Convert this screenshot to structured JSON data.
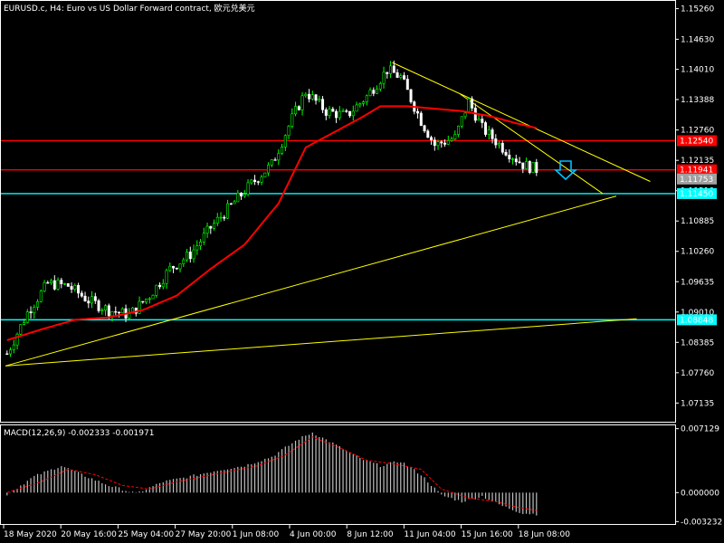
{
  "window": {
    "title": "EURUSD.c, H4:  Euro vs US Dollar Forward contract, 欧元兑美元"
  },
  "colors": {
    "background": "#000000",
    "bull_candle": "#00ff00",
    "bear_candle": "#ffffff",
    "ma": "#ff0000",
    "trendline": "#ffff00",
    "resistance": "#ff0000",
    "support": "#00ffff",
    "arrow": "#00bfff",
    "macd_hist": "#c0c0c0",
    "macd_signal": "#ff0000"
  },
  "chart_data": [
    {
      "type": "candlestick",
      "title": "EURUSD.c, H4:  Euro vs US Dollar Forward contract, 欧元兑美元",
      "ylim": [
        1.0675,
        1.1542
      ],
      "price_ticks": [
        "1.15260",
        "1.14630",
        "1.14010",
        "1.13388",
        "1.12760",
        "1.12135",
        "1.11510",
        "1.10885",
        "1.10260",
        "1.09635",
        "1.09010",
        "1.08385",
        "1.07760",
        "1.07135"
      ],
      "time_labels": [
        "18 May 2020",
        "20 May 16:00",
        "25 May 04:00",
        "27 May 20:00",
        "1 Jun 08:00",
        "4 Jun 00:00",
        "8 Jun 12:00",
        "11 Jun 04:00",
        "15 Jun 16:00",
        "18 Jun 08:00"
      ],
      "close_path": [
        [
          0,
          1.0815
        ],
        [
          6,
          1.09
        ],
        [
          12,
          1.096
        ],
        [
          18,
          1.0955
        ],
        [
          24,
          1.0925
        ],
        [
          30,
          1.0905
        ],
        [
          36,
          1.0895
        ],
        [
          42,
          1.0935
        ],
        [
          48,
          1.099
        ],
        [
          54,
          1.102
        ],
        [
          60,
          1.1075
        ],
        [
          66,
          1.112
        ],
        [
          72,
          1.1165
        ],
        [
          78,
          1.1205
        ],
        [
          84,
          1.13
        ],
        [
          88,
          1.1355
        ],
        [
          94,
          1.1315
        ],
        [
          100,
          1.1305
        ],
        [
          106,
          1.1345
        ],
        [
          112,
          1.14
        ],
        [
          116,
          1.1385
        ],
        [
          122,
          1.1295
        ],
        [
          126,
          1.1245
        ],
        [
          132,
          1.126
        ],
        [
          136,
          1.1335
        ],
        [
          140,
          1.128
        ],
        [
          146,
          1.124
        ],
        [
          152,
          1.1205
        ],
        [
          156,
          1.1195
        ]
      ],
      "moving_average": [
        [
          0,
          1.0843
        ],
        [
          10,
          1.0865
        ],
        [
          20,
          1.0885
        ],
        [
          30,
          1.089
        ],
        [
          40,
          1.0905
        ],
        [
          50,
          1.0935
        ],
        [
          60,
          1.099
        ],
        [
          70,
          1.104
        ],
        [
          80,
          1.1125
        ],
        [
          88,
          1.124
        ],
        [
          96,
          1.127
        ],
        [
          104,
          1.13
        ],
        [
          110,
          1.1325
        ],
        [
          118,
          1.1325
        ],
        [
          126,
          1.132
        ],
        [
          134,
          1.1315
        ],
        [
          142,
          1.1305
        ],
        [
          150,
          1.129
        ],
        [
          156,
          1.128
        ]
      ],
      "levels": [
        {
          "label": "1.12540",
          "price": 1.1254,
          "color": "#ff0000"
        },
        {
          "label": "1.11941",
          "price": 1.1194,
          "color": "#ff0000"
        },
        {
          "label": "1.11753",
          "price": 1.1175,
          "color": "#a0a0a0"
        },
        {
          "label": "1.11450",
          "price": 1.1145,
          "color": "#00ffff"
        },
        {
          "label": "1.08848",
          "price": 1.0885,
          "color": "#00ffff"
        }
      ],
      "trendlines": [
        {
          "from": [
            0,
            1.079
          ],
          "to": [
            180,
            1.114
          ]
        },
        {
          "from": [
            0,
            1.079
          ],
          "to": [
            186,
            1.0887
          ]
        },
        {
          "from": [
            114,
            1.1415
          ],
          "to": [
            190,
            1.117
          ]
        },
        {
          "from": [
            134,
            1.135
          ],
          "to": [
            176,
            1.1145
          ]
        }
      ]
    },
    {
      "type": "bar",
      "title": "MACD(12,26,9) -0.002333 -0.001971",
      "ylim": [
        -0.0035,
        0.0075
      ],
      "value_ticks": [
        "0.007129",
        "0.000000",
        "-0.003232"
      ],
      "macd_path": [
        [
          0,
          -0.0002
        ],
        [
          8,
          0.0018
        ],
        [
          16,
          0.003
        ],
        [
          22,
          0.002
        ],
        [
          30,
          0.0008
        ],
        [
          38,
          -0.0001
        ],
        [
          46,
          0.0012
        ],
        [
          54,
          0.0018
        ],
        [
          62,
          0.0025
        ],
        [
          70,
          0.003
        ],
        [
          78,
          0.004
        ],
        [
          86,
          0.006
        ],
        [
          90,
          0.0067
        ],
        [
          96,
          0.0055
        ],
        [
          104,
          0.0038
        ],
        [
          110,
          0.003
        ],
        [
          116,
          0.0035
        ],
        [
          122,
          0.002
        ],
        [
          128,
          -0.0003
        ],
        [
          134,
          -0.001
        ],
        [
          140,
          -0.0004
        ],
        [
          146,
          -0.0015
        ],
        [
          152,
          -0.0023
        ],
        [
          156,
          -0.0024
        ]
      ],
      "signal_path": [
        [
          0,
          0.0
        ],
        [
          10,
          0.0012
        ],
        [
          18,
          0.0026
        ],
        [
          26,
          0.002
        ],
        [
          34,
          0.0008
        ],
        [
          42,
          0.0004
        ],
        [
          50,
          0.0012
        ],
        [
          58,
          0.0018
        ],
        [
          66,
          0.0024
        ],
        [
          74,
          0.003
        ],
        [
          82,
          0.0042
        ],
        [
          90,
          0.0062
        ],
        [
          98,
          0.005
        ],
        [
          106,
          0.0036
        ],
        [
          114,
          0.0032
        ],
        [
          122,
          0.0026
        ],
        [
          128,
          0.0004
        ],
        [
          136,
          -0.0006
        ],
        [
          144,
          -0.001
        ],
        [
          150,
          -0.0016
        ],
        [
          156,
          -0.002
        ]
      ]
    }
  ]
}
